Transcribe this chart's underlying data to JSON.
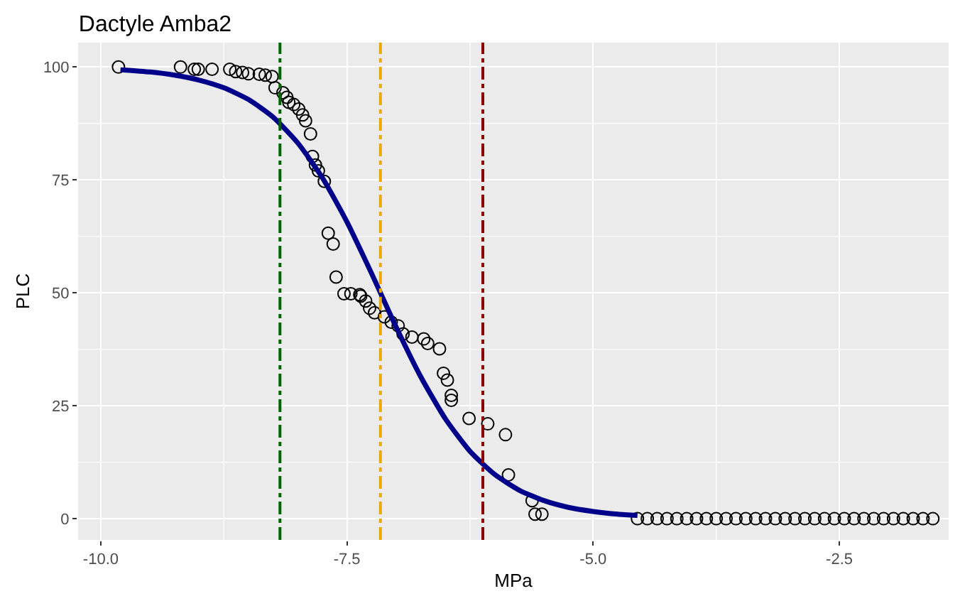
{
  "chart_data": {
    "type": "scatter",
    "title": "Dactyle Amba2",
    "xlabel": "MPa",
    "ylabel": "PLC",
    "xlim": [
      -10.23,
      -1.39
    ],
    "ylim": [
      -4.7,
      105.4
    ],
    "xticks": [
      {
        "value": -10,
        "label": "-10.0"
      },
      -7.5,
      {
        "value": -5,
        "label": "-5.0"
      },
      -2.5
    ],
    "yticks": [
      0,
      25,
      50,
      75,
      100
    ],
    "grid": true,
    "legend": false,
    "marker": "circle",
    "series": [
      {
        "color": "#000000",
        "x": [
          -9.82,
          -9.19,
          -9.05,
          -9.01,
          -8.87,
          -8.69,
          -8.63,
          -8.56,
          -8.5,
          -8.39,
          -8.33,
          -8.26,
          -8.23,
          -8.15,
          -8.11,
          -8.09,
          -8.04,
          -7.99,
          -7.95,
          -7.92,
          -7.87,
          -7.85,
          -7.82,
          -7.79,
          -7.73,
          -7.69,
          -7.64,
          -7.61,
          -7.53,
          -7.46,
          -7.37,
          -7.36,
          -7.31,
          -7.27,
          -7.22,
          -7.12,
          -7.05,
          -6.98,
          -6.93,
          -6.84,
          -6.72,
          -6.68,
          -6.56,
          -6.52,
          -6.48,
          -6.44,
          -6.44,
          -6.26,
          -6.07,
          -5.89,
          -5.86,
          -5.62,
          -5.59,
          -5.52,
          -4.55,
          -4.45,
          -4.35,
          -4.25,
          -4.15,
          -4.05,
          -3.95,
          -3.85,
          -3.75,
          -3.65,
          -3.55,
          -3.45,
          -3.35,
          -3.25,
          -3.15,
          -3.05,
          -2.95,
          -2.85,
          -2.75,
          -2.65,
          -2.55,
          -2.45,
          -2.35,
          -2.25,
          -2.15,
          -2.05,
          -1.95,
          -1.85,
          -1.75,
          -1.65,
          -1.55
        ],
        "values": [
          100,
          100,
          99.5,
          99.5,
          99.5,
          99.5,
          99,
          98.8,
          98.5,
          98.4,
          98.2,
          97.9,
          95.4,
          94.3,
          93.3,
          92.2,
          91.7,
          90.7,
          89.4,
          88.1,
          85.2,
          80.2,
          78.3,
          77,
          74.7,
          63.2,
          60.8,
          53.5,
          49.8,
          49.8,
          49.6,
          49.3,
          48.2,
          46.6,
          45.6,
          44.7,
          43.5,
          42.7,
          40.9,
          40.2,
          39.8,
          38.8,
          37.6,
          32.2,
          30.7,
          27.3,
          26.2,
          22.2,
          21,
          18.6,
          9.7,
          4,
          1,
          1,
          0,
          0,
          0,
          0,
          0,
          0,
          0,
          0,
          0,
          0,
          0,
          0,
          0,
          0,
          0,
          0,
          0,
          0,
          0,
          0,
          0,
          0,
          0,
          0,
          0,
          0,
          0,
          0,
          0,
          0,
          0
        ]
      },
      {
        "type": "line",
        "color": "#00008b",
        "marker": "none",
        "line_style": "solid",
        "x": [
          -9.8,
          -9.5,
          -9.25,
          -9,
          -8.75,
          -8.5,
          -8.25,
          -8,
          -7.75,
          -7.5,
          -7.25,
          -7,
          -6.75,
          -6.5,
          -6.25,
          -6,
          -5.75,
          -5.5,
          -5.25,
          -5,
          -4.75,
          -4.55
        ],
        "values": [
          99.4,
          98.9,
          98.2,
          97.1,
          95.4,
          92.8,
          88.9,
          83.2,
          75.5,
          65.7,
          54.3,
          42.4,
          31.4,
          22.1,
          14.9,
          9.8,
          6.3,
          4,
          2.5,
          1.6,
          1,
          0.7
        ]
      }
    ],
    "ref_lines": [
      {
        "axis": "x",
        "value": -8.18,
        "color": "#006400",
        "line_style": "dashdot"
      },
      {
        "axis": "x",
        "value": -7.16,
        "color": "#e8a80c",
        "line_style": "dashdot"
      },
      {
        "axis": "x",
        "value": -6.12,
        "color": "#8b0000",
        "line_style": "dashdot"
      }
    ]
  }
}
